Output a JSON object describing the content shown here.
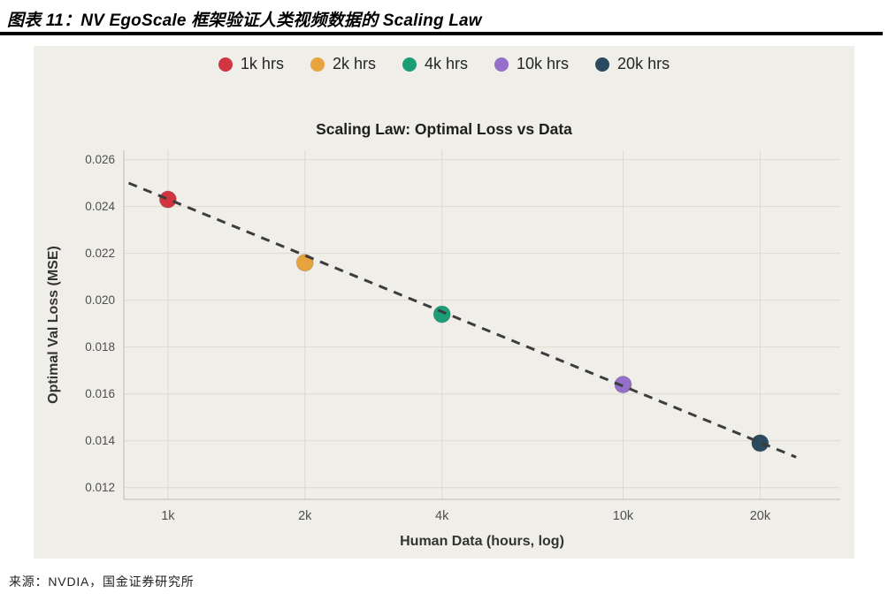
{
  "header": {
    "title": "图表 11：NV EgoScale 框架验证人类视频数据的 Scaling Law"
  },
  "footer": {
    "source": "来源：NVDIA，国金证券研究所"
  },
  "colors": {
    "panel_background": "#f0eee8",
    "grid": "#ddd9ce",
    "spine": "#c8c4b9",
    "tick_label": "#4f4f4f",
    "axis_title": "#333333",
    "trend_line": "#3d3d3d",
    "title_rule": "#000000"
  },
  "chart_data": {
    "type": "scatter",
    "title": "Scaling Law: Optimal Loss vs Data",
    "xlabel": "Human Data (hours, log)",
    "ylabel": "Optimal Val Loss (MSE)",
    "x_scale": "log",
    "grid": true,
    "legend_position": "top",
    "xlim": [
      800,
      30000
    ],
    "ylim": [
      0.0115,
      0.0264
    ],
    "x_ticks": [
      1000,
      2000,
      4000,
      10000,
      20000
    ],
    "x_tick_labels": [
      "1k",
      "2k",
      "4k",
      "10k",
      "20k"
    ],
    "y_ticks": [
      0.012,
      0.014,
      0.016,
      0.018,
      0.02,
      0.022,
      0.024,
      0.026
    ],
    "points": [
      {
        "label": "1k hrs",
        "x": 1000,
        "y": 0.0243,
        "color": "#d13640"
      },
      {
        "label": "2k hrs",
        "x": 2000,
        "y": 0.0216,
        "color": "#e7a33e"
      },
      {
        "label": "4k hrs",
        "x": 4000,
        "y": 0.0194,
        "color": "#1b9e77"
      },
      {
        "label": "10k hrs",
        "x": 10000,
        "y": 0.0164,
        "color": "#9470c8"
      },
      {
        "label": "20k hrs",
        "x": 20000,
        "y": 0.0139,
        "color": "#2c4a5f"
      }
    ],
    "trend_line": {
      "style": "dashed",
      "start": {
        "x": 820,
        "y": 0.025
      },
      "end": {
        "x": 24000,
        "y": 0.0133
      }
    }
  }
}
